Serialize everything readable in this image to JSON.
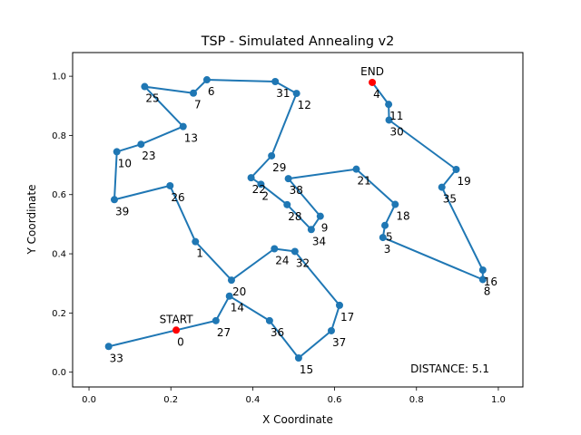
{
  "chart_data": {
    "type": "line",
    "title": "TSP - Simulated Annealing v2",
    "xlabel": "X Coordinate",
    "ylabel": "Y Coordinate",
    "xlim": [
      -0.04,
      1.06
    ],
    "ylim": [
      -0.05,
      1.08
    ],
    "xticks": [
      "0.0",
      "0.2",
      "0.4",
      "0.6",
      "0.8",
      "1.0"
    ],
    "yticks": [
      "0.0",
      "0.2",
      "0.4",
      "0.6",
      "0.8",
      "1.0"
    ],
    "grid": false,
    "line_color": "#1f77b4",
    "marker_color": "#1f77b4",
    "endpoint_color": "#ff0000",
    "start_label": "START",
    "end_label": "END",
    "distance_text": "DISTANCE: 5.1",
    "cities": [
      {
        "id": "0",
        "x": 0.213,
        "y": 0.142
      },
      {
        "id": "1",
        "x": 0.26,
        "y": 0.441
      },
      {
        "id": "2",
        "x": 0.42,
        "y": 0.635
      },
      {
        "id": "3",
        "x": 0.718,
        "y": 0.455
      },
      {
        "id": "4",
        "x": 0.692,
        "y": 0.979
      },
      {
        "id": "5",
        "x": 0.723,
        "y": 0.496
      },
      {
        "id": "6",
        "x": 0.288,
        "y": 0.988
      },
      {
        "id": "7",
        "x": 0.255,
        "y": 0.943
      },
      {
        "id": "8",
        "x": 0.962,
        "y": 0.313
      },
      {
        "id": "9",
        "x": 0.565,
        "y": 0.527
      },
      {
        "id": "10",
        "x": 0.068,
        "y": 0.745
      },
      {
        "id": "11",
        "x": 0.732,
        "y": 0.905
      },
      {
        "id": "12",
        "x": 0.507,
        "y": 0.942
      },
      {
        "id": "13",
        "x": 0.23,
        "y": 0.83
      },
      {
        "id": "14",
        "x": 0.343,
        "y": 0.257
      },
      {
        "id": "15",
        "x": 0.512,
        "y": 0.048
      },
      {
        "id": "16",
        "x": 0.962,
        "y": 0.345
      },
      {
        "id": "17",
        "x": 0.612,
        "y": 0.226
      },
      {
        "id": "19",
        "x": 0.897,
        "y": 0.685
      },
      {
        "id": "18",
        "x": 0.748,
        "y": 0.567
      },
      {
        "id": "20",
        "x": 0.348,
        "y": 0.311
      },
      {
        "id": "21",
        "x": 0.653,
        "y": 0.686
      },
      {
        "id": "22",
        "x": 0.396,
        "y": 0.657
      },
      {
        "id": "23",
        "x": 0.127,
        "y": 0.77
      },
      {
        "id": "24",
        "x": 0.453,
        "y": 0.417
      },
      {
        "id": "25",
        "x": 0.136,
        "y": 0.965
      },
      {
        "id": "26",
        "x": 0.198,
        "y": 0.63
      },
      {
        "id": "27",
        "x": 0.31,
        "y": 0.174
      },
      {
        "id": "28",
        "x": 0.484,
        "y": 0.566
      },
      {
        "id": "29",
        "x": 0.446,
        "y": 0.731
      },
      {
        "id": "30",
        "x": 0.733,
        "y": 0.852
      },
      {
        "id": "31",
        "x": 0.455,
        "y": 0.982
      },
      {
        "id": "32",
        "x": 0.503,
        "y": 0.408
      },
      {
        "id": "33",
        "x": 0.048,
        "y": 0.087
      },
      {
        "id": "34",
        "x": 0.543,
        "y": 0.482
      },
      {
        "id": "35",
        "x": 0.862,
        "y": 0.625
      },
      {
        "id": "36",
        "x": 0.441,
        "y": 0.174
      },
      {
        "id": "37",
        "x": 0.592,
        "y": 0.14
      },
      {
        "id": "38",
        "x": 0.487,
        "y": 0.654
      },
      {
        "id": "39",
        "x": 0.062,
        "y": 0.583
      }
    ],
    "route": [
      "0",
      "27",
      "14",
      "36",
      "15",
      "37",
      "17",
      "32",
      "24",
      "20",
      "1",
      "26",
      "39",
      "10",
      "23",
      "13",
      "25",
      "7",
      "6",
      "31",
      "12",
      "29",
      "22",
      "2",
      "28",
      "34",
      "9",
      "38",
      "21",
      "18",
      "5",
      "3",
      "8",
      "16",
      "35",
      "19",
      "30",
      "11",
      "4"
    ],
    "start_city": "0",
    "end_city": "4",
    "open_path_start": "33"
  }
}
